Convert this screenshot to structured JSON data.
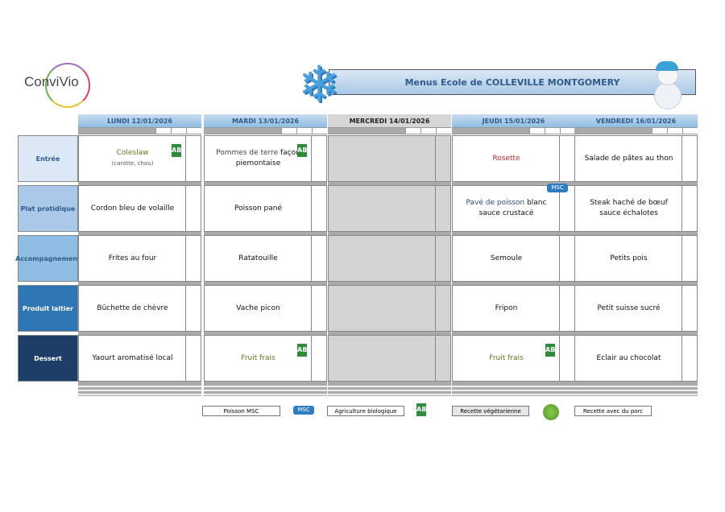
{
  "brand": {
    "logo": "ConviVio"
  },
  "header": {
    "title": "Menus Ecole de COLLEVILLE MONTGOMERY"
  },
  "categories": [
    "Entrée",
    "Plat protidique",
    "Accompagnement",
    "Produit laitier",
    "Dessert"
  ],
  "category_colors": [
    "#dce8f5",
    "#aac9e8",
    "#8fbde3",
    "#2f76b5",
    "#1d3e66"
  ],
  "days": [
    {
      "label": "LUNDI  12/01/2026",
      "closed": false,
      "items": [
        {
          "parts": [
            {
              "text": "Coleslaw",
              "color": "#5a7a1e"
            }
          ],
          "note": "(carotte, chou)",
          "icon": "ab-bio-icon"
        },
        {
          "parts": [
            {
              "text": "Cordon bleu de volaille",
              "color": "#111"
            }
          ]
        },
        {
          "parts": [
            {
              "text": "Frites au four",
              "color": "#111"
            }
          ]
        },
        {
          "parts": [
            {
              "text": "Bûchette de chèvre",
              "color": "#111"
            }
          ]
        },
        {
          "parts": [
            {
              "text": "Yaourt aromatisé local",
              "color": "#111"
            }
          ]
        }
      ]
    },
    {
      "label": "MARDI 13/01/2026",
      "closed": false,
      "items": [
        {
          "parts": [
            {
              "text": "Pommes de terre ",
              "color": "#444"
            },
            {
              "text": "façon piemontaise",
              "color": "#111"
            }
          ],
          "icon": "ab-bio-icon"
        },
        {
          "parts": [
            {
              "text": "Poisson pané",
              "color": "#111"
            }
          ]
        },
        {
          "parts": [
            {
              "text": "Ratatouille",
              "color": "#111"
            }
          ]
        },
        {
          "parts": [
            {
              "text": "Vache picon",
              "color": "#111"
            }
          ]
        },
        {
          "parts": [
            {
              "text": "Fruit frais",
              "color": "#5a7a1e"
            }
          ],
          "icon": "ab-bio-icon"
        }
      ]
    },
    {
      "label": "MERCREDI 14/01/2026",
      "closed": true,
      "items": [
        {},
        {},
        {},
        {},
        {}
      ]
    },
    {
      "label": "JEUDI 15/01/2026",
      "closed": false,
      "items": [
        {
          "parts": [
            {
              "text": "Rosette",
              "color": "#c0282d"
            }
          ]
        },
        {
          "parts": [
            {
              "text": "Pavé de poisson",
              "color": "#2a4a8a"
            },
            {
              "text": " blanc sauce crustacé",
              "color": "#111"
            }
          ],
          "icon": "msc-icon"
        },
        {
          "parts": [
            {
              "text": "Semoule",
              "color": "#111"
            }
          ]
        },
        {
          "parts": [
            {
              "text": "Fripon",
              "color": "#111"
            }
          ]
        },
        {
          "parts": [
            {
              "text": "Fruit frais",
              "color": "#5a7a1e"
            }
          ],
          "icon": "ab-bio-icon"
        }
      ]
    },
    {
      "label": "VENDREDI 16/01/2026",
      "closed": false,
      "items": [
        {
          "parts": [
            {
              "text": "Salade de pâtes au thon",
              "color": "#111"
            }
          ]
        },
        {
          "parts": [
            {
              "text": "Steak haché de bœuf sauce échalotes",
              "color": "#111"
            }
          ]
        },
        {
          "parts": [
            {
              "text": "Petits pois",
              "color": "#111"
            }
          ]
        },
        {
          "parts": [
            {
              "text": "Petit suisse sucré",
              "color": "#111"
            }
          ]
        },
        {
          "parts": [
            {
              "text": "Eclair au chocolat",
              "color": "#111"
            }
          ]
        }
      ]
    }
  ],
  "legend": {
    "msc": {
      "label": "Poisson MSC",
      "color": "#2a5a9a"
    },
    "bio": {
      "label": "Agriculture biologique",
      "color": "#333"
    },
    "veg": {
      "label": "Recette végétarienne",
      "color": "#333"
    },
    "pork": {
      "label": "Recette avec du porc",
      "color": "#c0282d"
    }
  }
}
